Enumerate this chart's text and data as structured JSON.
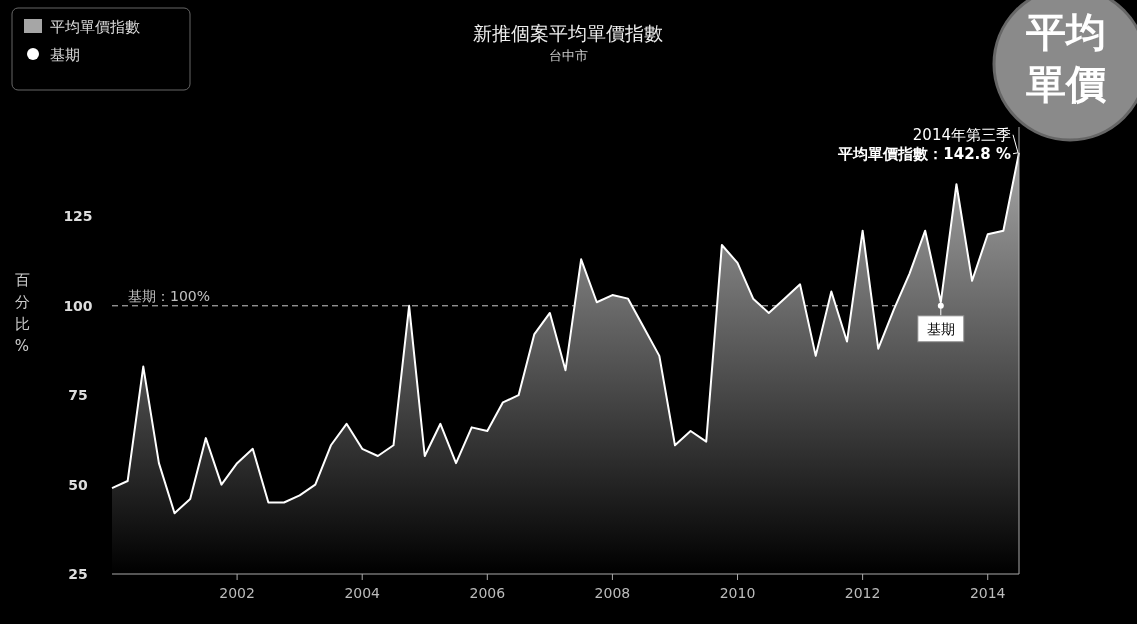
{
  "chart_data": {
    "type": "area",
    "title": "新推個案平均單價指數",
    "subtitle": "台中市",
    "ylabel": "百分比%",
    "x": [
      "2000-01",
      "2000-04",
      "2000-07",
      "2000-10",
      "2001-01",
      "2001-04",
      "2001-07",
      "2001-10",
      "2002-01",
      "2002-04",
      "2002-07",
      "2002-10",
      "2003-01",
      "2003-04",
      "2003-07",
      "2003-10",
      "2004-01",
      "2004-04",
      "2004-07",
      "2004-10",
      "2005-01",
      "2005-04",
      "2005-07",
      "2005-10",
      "2006-01",
      "2006-04",
      "2006-07",
      "2006-10",
      "2007-01",
      "2007-04",
      "2007-07",
      "2007-10",
      "2008-01",
      "2008-04",
      "2008-07",
      "2008-10",
      "2009-01",
      "2009-04",
      "2009-07",
      "2009-10",
      "2010-01",
      "2010-04",
      "2010-07",
      "2010-10",
      "2011-01",
      "2011-04",
      "2011-07",
      "2011-10",
      "2012-01",
      "2012-04",
      "2012-07",
      "2012-10",
      "2013-01",
      "2013-04",
      "2013-07",
      "2013-10",
      "2014-01",
      "2014-04",
      "2014-07"
    ],
    "series": [
      {
        "name": "平均單價指數",
        "color": "#a6a6a6",
        "values": [
          49,
          51,
          83,
          56,
          42,
          46,
          63,
          50,
          56,
          60,
          45,
          45,
          47,
          50,
          61,
          67,
          60,
          58,
          61,
          100,
          58,
          67,
          56,
          66,
          65,
          73,
          75,
          92,
          98,
          82,
          113,
          101,
          103,
          102,
          94,
          86,
          61,
          65,
          62,
          117,
          112,
          102,
          98,
          102,
          106,
          86,
          104,
          90,
          121,
          88,
          99,
          109,
          121,
          101,
          134,
          107,
          120,
          121,
          142.8
        ]
      },
      {
        "name": "基期",
        "type": "scatter",
        "color": "#ffffff",
        "x": [
          "2013-04"
        ],
        "values": [
          100
        ]
      }
    ],
    "ref_lines": [
      {
        "axis": "y",
        "value": 100,
        "label": "基期：100%",
        "color": "#ffffff",
        "line_style": "dashed"
      }
    ],
    "annotations": [
      {
        "text": "2014年第三季",
        "x": "2014-07",
        "y": 142.8
      },
      {
        "text": "平均單價指數：142.8 %",
        "x": "2014-07",
        "y": 142.8
      },
      "平均單價"
    ],
    "xlim": [
      "2000-01",
      "2014-07"
    ],
    "xticks": [
      "2002",
      "2004",
      "2006",
      "2008",
      "2010",
      "2012",
      "2014"
    ],
    "ylim": [
      25,
      150
    ],
    "yticks": [
      25,
      50,
      75,
      100,
      125
    ],
    "legend": "top left",
    "grid": false
  }
}
